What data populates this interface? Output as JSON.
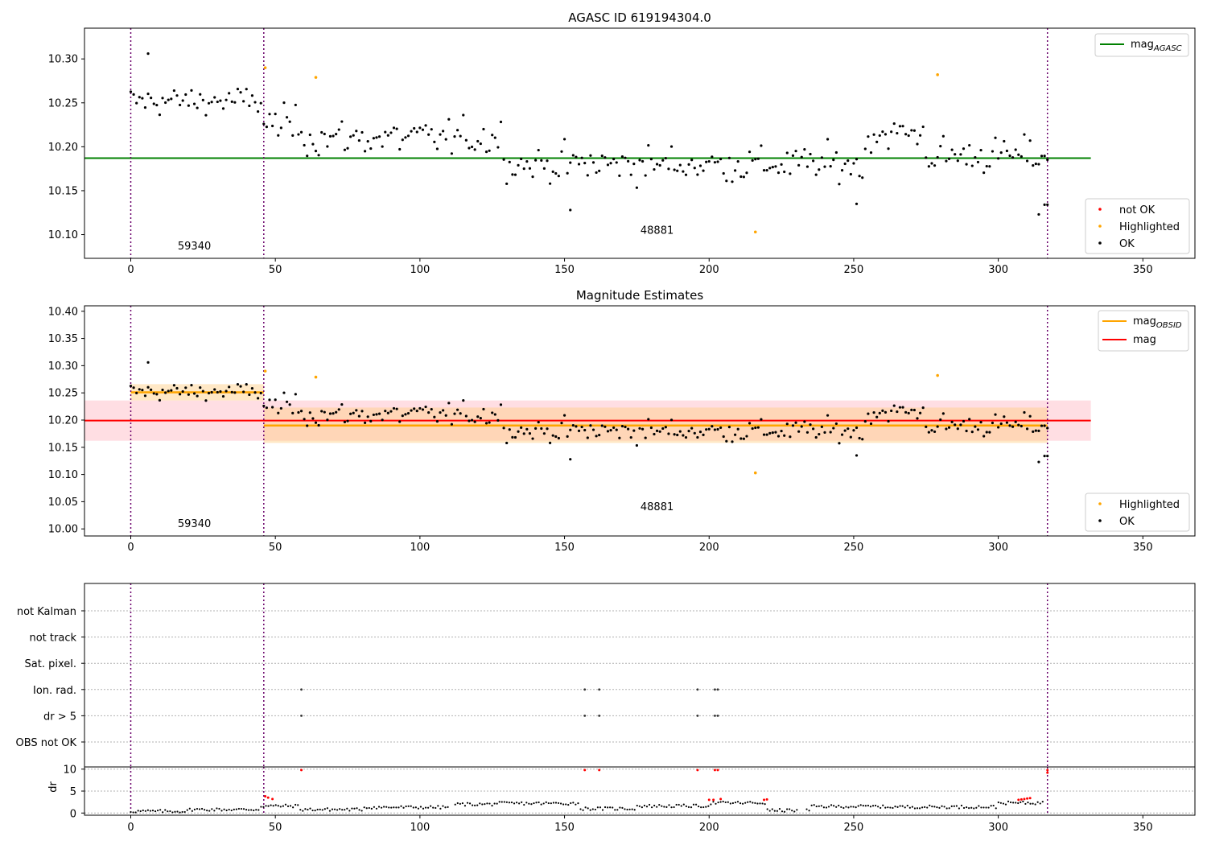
{
  "chart_data": [
    {
      "type": "scatter",
      "title": "AGASC ID 619194304.0",
      "xlim": [
        -16,
        368
      ],
      "ylim": [
        10.073,
        10.335
      ],
      "xticks": [
        0,
        50,
        100,
        150,
        200,
        250,
        300,
        350
      ],
      "yticks": [
        10.1,
        10.15,
        10.2,
        10.25,
        10.3
      ],
      "obsid_boundaries": [
        0,
        46,
        317
      ],
      "annotations": [
        {
          "text": "59340",
          "x": 22,
          "y": 10.083
        },
        {
          "text": "48881",
          "x": 182,
          "y": 10.101
        }
      ],
      "reference_line": {
        "name": "mag_AGASC",
        "y": 10.187,
        "x_range": [
          -16,
          332
        ],
        "color": "#008000"
      },
      "series": [
        {
          "name": "not OK",
          "color": "#ff0000",
          "points": []
        },
        {
          "name": "Highlighted",
          "color": "#ffa500",
          "points": [
            [
              46.5,
              10.29
            ],
            [
              64,
              10.279
            ],
            [
              216,
              10.103
            ],
            [
              279,
              10.282
            ]
          ]
        },
        {
          "name": "OK",
          "color": "#000000",
          "points": "shared.ok_points"
        }
      ],
      "legend_lines": {
        "label": "mag",
        "sub": "AGASC"
      },
      "legend_points": [
        "not OK",
        "Highlighted",
        "OK"
      ]
    },
    {
      "type": "scatter",
      "title": "Magnitude Estimates",
      "xlim": [
        -16,
        368
      ],
      "ylim": [
        9.987,
        10.41
      ],
      "xticks": [
        0,
        50,
        100,
        150,
        200,
        250,
        300,
        350
      ],
      "yticks": [
        10.0,
        10.05,
        10.1,
        10.15,
        10.2,
        10.25,
        10.3,
        10.35,
        10.4
      ],
      "obsid_boundaries": [
        0,
        46,
        317
      ],
      "annotations": [
        {
          "text": "59340",
          "x": 22,
          "y": 10.003
        },
        {
          "text": "48881",
          "x": 182,
          "y": 10.034
        }
      ],
      "mag": {
        "name": "mag",
        "y": 10.199,
        "band": [
          10.162,
          10.236
        ],
        "x_range": [
          -16,
          332
        ],
        "color": "#ff0000"
      },
      "mag_obsid": [
        {
          "y": 10.251,
          "band": [
            10.236,
            10.266
          ],
          "x_range": [
            0,
            46
          ]
        },
        {
          "y": 10.19,
          "band": [
            10.158,
            10.223
          ],
          "x_range": [
            46,
            317
          ]
        }
      ],
      "series": [
        {
          "name": "Highlighted",
          "color": "#ffa500",
          "points": [
            [
              46.5,
              10.29
            ],
            [
              64,
              10.279
            ],
            [
              216,
              10.103
            ],
            [
              279,
              10.282
            ]
          ]
        },
        {
          "name": "OK",
          "color": "#000000",
          "points": "shared.ok_points"
        }
      ],
      "legend_lines": [
        {
          "label": "mag",
          "sub": "OBSID",
          "color": "#ffa500"
        },
        {
          "label": "mag",
          "sub": "",
          "color": "#ff0000"
        }
      ],
      "legend_points": [
        "Highlighted",
        "OK"
      ]
    },
    {
      "type": "scatter",
      "title": "",
      "xlim": [
        -16,
        368
      ],
      "xticks": [
        0,
        50,
        100,
        150,
        200,
        250,
        300,
        350
      ],
      "flag_categories": [
        "OBS not OK",
        "dr > 5",
        "Ion. rad.",
        "Sat. pixel.",
        "not track",
        "not Kalman"
      ],
      "flags": {
        "dr > 5": [
          59,
          157,
          162,
          196,
          202,
          203
        ],
        "Ion. rad.": [
          59,
          157,
          162,
          196,
          202,
          203
        ]
      },
      "dr_panel": {
        "ylabel": "dr",
        "ylim": [
          -0.5,
          10.5
        ],
        "yticks": [
          0,
          5,
          10
        ],
        "red_points": [
          [
            46.5,
            3.8
          ],
          [
            47.5,
            3.5
          ],
          [
            49,
            3.2
          ],
          [
            59,
            9.8
          ],
          [
            157,
            9.8
          ],
          [
            162,
            9.8
          ],
          [
            196,
            9.8
          ],
          [
            200,
            3.0
          ],
          [
            201.5,
            3.0
          ],
          [
            202,
            9.8
          ],
          [
            203,
            9.8
          ],
          [
            204,
            3.2
          ],
          [
            219,
            3.0
          ],
          [
            220,
            3.1
          ],
          [
            307,
            3.0
          ],
          [
            308,
            3.1
          ],
          [
            309,
            3.2
          ],
          [
            310,
            3.3
          ],
          [
            311,
            3.4
          ],
          [
            317,
            9.8
          ],
          [
            317,
            9.2
          ]
        ]
      }
    }
  ],
  "colors": {
    "obsid_line": "#6a006a",
    "grid": "#b0b0b0"
  }
}
